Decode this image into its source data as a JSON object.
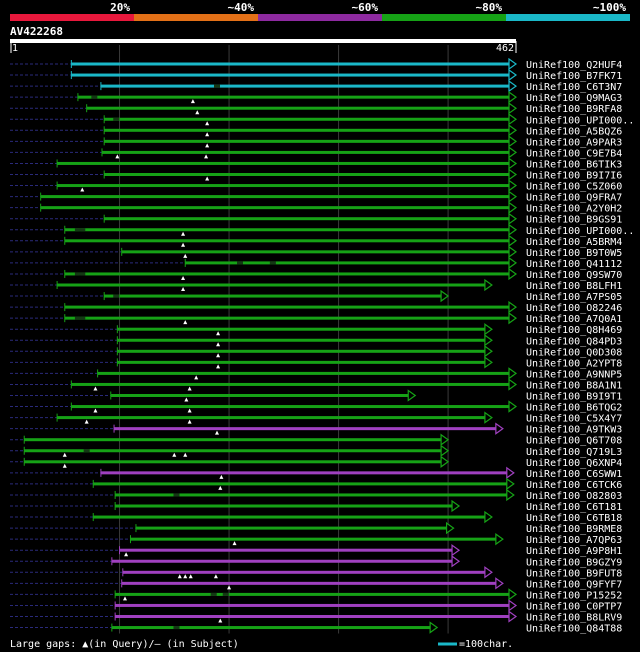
{
  "query": {
    "id": "AV422268",
    "range_start": "1",
    "range_end": "462",
    "length": 462
  },
  "identity_legend": [
    {
      "label": "20%",
      "color": "#e8183c"
    },
    {
      "label": "~40%",
      "color": "#e37017"
    },
    {
      "label": "~60%",
      "color": "#8e2aa0"
    },
    {
      "label": "~80%",
      "color": "#16a216"
    },
    {
      "label": "~100%",
      "color": "#1ab8c8"
    }
  ],
  "colors": {
    "cyan": "#1ab8c8",
    "green": "#16a216",
    "purple": "#a040c0",
    "grid": "#3a3a3a",
    "dash": "#2a2a7a",
    "axis": "#ffffff"
  },
  "footer": {
    "gaps_text": "Large gaps: ▲(in Query)/– (in Subject)",
    "scale_text": "=100char."
  },
  "hits": [
    {
      "label": "UniRef100_Q2HUF4",
      "start": 56,
      "end": 462,
      "color": "cyan",
      "qmarks": [],
      "smarks": []
    },
    {
      "label": "UniRef100_B7FK71",
      "start": 56,
      "end": 462,
      "color": "cyan",
      "qmarks": [],
      "smarks": []
    },
    {
      "label": "UniRef100_C6T3N7",
      "start": 83,
      "end": 462,
      "color": "cyan",
      "qmarks": [],
      "smarks": [
        189
      ]
    },
    {
      "label": "UniRef100_Q9MAG3",
      "start": 62,
      "end": 462,
      "color": "green",
      "qmarks": [
        167
      ],
      "smarks": [
        77
      ]
    },
    {
      "label": "UniRef100_B9RFA8",
      "start": 70,
      "end": 462,
      "color": "green",
      "qmarks": [
        171
      ],
      "smarks": []
    },
    {
      "label": "UniRef100_UPI000..",
      "start": 86,
      "end": 462,
      "color": "green",
      "qmarks": [
        180
      ],
      "smarks": [
        97
      ]
    },
    {
      "label": "UniRef100_A5BQZ6",
      "start": 86,
      "end": 462,
      "color": "green",
      "qmarks": [
        180
      ],
      "smarks": []
    },
    {
      "label": "UniRef100_A9PAR3",
      "start": 86,
      "end": 462,
      "color": "green",
      "qmarks": [
        180
      ],
      "smarks": []
    },
    {
      "label": "UniRef100_C9E7B4",
      "start": 84,
      "end": 462,
      "color": "green",
      "qmarks": [
        98,
        179
      ],
      "smarks": []
    },
    {
      "label": "UniRef100_B6TIK3",
      "start": 43,
      "end": 462,
      "color": "green",
      "qmarks": [],
      "smarks": []
    },
    {
      "label": "UniRef100_B9I7I6",
      "start": 86,
      "end": 462,
      "color": "green",
      "qmarks": [
        180
      ],
      "smarks": []
    },
    {
      "label": "UniRef100_C5Z060",
      "start": 43,
      "end": 462,
      "color": "green",
      "qmarks": [
        66
      ],
      "smarks": []
    },
    {
      "label": "UniRef100_Q9FRA7",
      "start": 28,
      "end": 462,
      "color": "green",
      "qmarks": [],
      "smarks": []
    },
    {
      "label": "UniRef100_A2Y0H2",
      "start": 28,
      "end": 462,
      "color": "green",
      "qmarks": [],
      "smarks": []
    },
    {
      "label": "UniRef100_B9GS91",
      "start": 86,
      "end": 462,
      "color": "green",
      "qmarks": [],
      "smarks": []
    },
    {
      "label": "UniRef100_UPI000..",
      "start": 50,
      "end": 462,
      "color": "green",
      "qmarks": [
        158
      ],
      "smarks": [
        62,
        66
      ]
    },
    {
      "label": "UniRef100_A5BRM4",
      "start": 50,
      "end": 462,
      "color": "green",
      "qmarks": [
        158
      ],
      "smarks": []
    },
    {
      "label": "UniRef100_B9T0W5",
      "start": 102,
      "end": 462,
      "color": "green",
      "qmarks": [
        160
      ],
      "smarks": []
    },
    {
      "label": "UniRef100_Q41112",
      "start": 160,
      "end": 462,
      "color": "green",
      "qmarks": [],
      "smarks": [
        210,
        240
      ]
    },
    {
      "label": "UniRef100_Q9SW70",
      "start": 50,
      "end": 462,
      "color": "green",
      "qmarks": [
        158
      ],
      "smarks": [
        62,
        66
      ]
    },
    {
      "label": "UniRef100_B8LFH1",
      "start": 43,
      "end": 440,
      "color": "green",
      "qmarks": [
        158
      ],
      "smarks": []
    },
    {
      "label": "UniRef100_A7PS05",
      "start": 86,
      "end": 400,
      "color": "green",
      "qmarks": [],
      "smarks": [
        97
      ]
    },
    {
      "label": "UniRef100_O82246",
      "start": 50,
      "end": 462,
      "color": "green",
      "qmarks": [],
      "smarks": []
    },
    {
      "label": "UniRef100_A7Q0A1",
      "start": 50,
      "end": 462,
      "color": "green",
      "qmarks": [
        160
      ],
      "smarks": [
        62,
        66
      ]
    },
    {
      "label": "UniRef100_Q8H469",
      "start": 98,
      "end": 440,
      "color": "green",
      "qmarks": [
        190
      ],
      "smarks": []
    },
    {
      "label": "UniRef100_Q84PD3",
      "start": 98,
      "end": 440,
      "color": "green",
      "qmarks": [
        190
      ],
      "smarks": []
    },
    {
      "label": "UniRef100_Q0D308",
      "start": 98,
      "end": 440,
      "color": "green",
      "qmarks": [
        190
      ],
      "smarks": []
    },
    {
      "label": "UniRef100_A2YPT8",
      "start": 98,
      "end": 440,
      "color": "green",
      "qmarks": [
        190
      ],
      "smarks": []
    },
    {
      "label": "UniRef100_A9NNP5",
      "start": 80,
      "end": 462,
      "color": "green",
      "qmarks": [
        170
      ],
      "smarks": []
    },
    {
      "label": "UniRef100_B8A1N1",
      "start": 56,
      "end": 462,
      "color": "green",
      "qmarks": [
        78,
        164
      ],
      "smarks": []
    },
    {
      "label": "UniRef100_B9I9T1",
      "start": 92,
      "end": 370,
      "color": "green",
      "qmarks": [
        161
      ],
      "smarks": []
    },
    {
      "label": "UniRef100_B6TQG2",
      "start": 56,
      "end": 462,
      "color": "green",
      "qmarks": [
        78,
        164
      ],
      "smarks": []
    },
    {
      "label": "UniRef100_C5X4Y7",
      "start": 43,
      "end": 440,
      "color": "green",
      "qmarks": [
        70,
        164
      ],
      "smarks": []
    },
    {
      "label": "UniRef100_A9TKW3",
      "start": 95,
      "end": 450,
      "color": "purple",
      "qmarks": [
        189
      ],
      "smarks": []
    },
    {
      "label": "UniRef100_Q6T708",
      "start": 13,
      "end": 400,
      "color": "green",
      "qmarks": [],
      "smarks": []
    },
    {
      "label": "UniRef100_Q719L3",
      "start": 13,
      "end": 400,
      "color": "green",
      "qmarks": [
        50,
        150,
        160
      ],
      "smarks": [
        70
      ]
    },
    {
      "label": "UniRef100_Q6XNP4",
      "start": 13,
      "end": 400,
      "color": "green",
      "qmarks": [
        50
      ],
      "smarks": []
    },
    {
      "label": "UniRef100_C6SWW1",
      "start": 83,
      "end": 460,
      "color": "purple",
      "qmarks": [
        193
      ],
      "smarks": []
    },
    {
      "label": "UniRef100_C6TCK6",
      "start": 76,
      "end": 460,
      "color": "green",
      "qmarks": [
        192
      ],
      "smarks": []
    },
    {
      "label": "UniRef100_O82803",
      "start": 96,
      "end": 460,
      "color": "green",
      "qmarks": [],
      "smarks": [
        152
      ]
    },
    {
      "label": "UniRef100_C6T181",
      "start": 96,
      "end": 410,
      "color": "green",
      "qmarks": [],
      "smarks": []
    },
    {
      "label": "UniRef100_C6TB18",
      "start": 76,
      "end": 440,
      "color": "green",
      "qmarks": [],
      "smarks": []
    },
    {
      "label": "UniRef100_B9RME8",
      "start": 115,
      "end": 405,
      "color": "green",
      "qmarks": [],
      "smarks": []
    },
    {
      "label": "UniRef100_A7QP63",
      "start": 110,
      "end": 450,
      "color": "green",
      "qmarks": [
        205
      ],
      "smarks": []
    },
    {
      "label": "UniRef100_A9P8H1",
      "start": 100,
      "end": 410,
      "color": "purple",
      "qmarks": [
        106
      ],
      "smarks": []
    },
    {
      "label": "UniRef100_B9GZY9",
      "start": 93,
      "end": 410,
      "color": "purple",
      "qmarks": [],
      "smarks": []
    },
    {
      "label": "UniRef100_B9FUT8",
      "start": 103,
      "end": 440,
      "color": "purple",
      "qmarks": [
        155,
        160,
        165,
        188
      ],
      "smarks": []
    },
    {
      "label": "UniRef100_Q9FYF7",
      "start": 102,
      "end": 450,
      "color": "purple",
      "qmarks": [
        200
      ],
      "smarks": []
    },
    {
      "label": "UniRef100_P15252",
      "start": 96,
      "end": 462,
      "color": "green",
      "qmarks": [
        105
      ],
      "smarks": [
        186,
        197
      ]
    },
    {
      "label": "UniRef100_C0PTP7",
      "start": 96,
      "end": 462,
      "color": "purple",
      "qmarks": [],
      "smarks": []
    },
    {
      "label": "UniRef100_B8LRV9",
      "start": 96,
      "end": 462,
      "color": "purple",
      "qmarks": [
        192
      ],
      "smarks": []
    },
    {
      "label": "UniRef100_Q84T88",
      "start": 93,
      "end": 390,
      "color": "green",
      "qmarks": [],
      "smarks": [
        152
      ]
    }
  ]
}
